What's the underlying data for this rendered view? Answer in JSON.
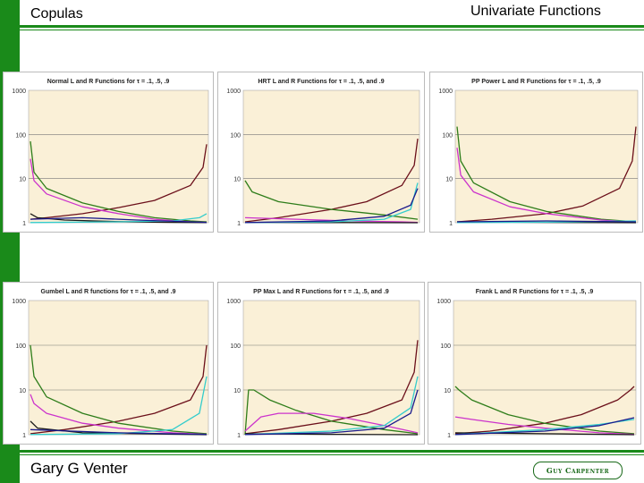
{
  "header": {
    "left": "Copulas",
    "right": "Univariate Functions"
  },
  "footer": {
    "author": "Gary G Venter",
    "logo_text": "Guy Carpenter"
  },
  "colors": {
    "brand_green": "#1a8a1a",
    "plot_bg": "#faf0d7"
  },
  "chart_data": [
    {
      "type": "line",
      "title": "Normal L and R Functions for τ = .1, .5, .9",
      "log_y": true,
      "ylim": [
        1,
        1000
      ],
      "y_ticks": [
        "1000",
        "100",
        "10",
        "1"
      ],
      "x_range": [
        0,
        1
      ],
      "series": [
        {
          "color": "#6b0f1a",
          "x": [
            0.01,
            0.1,
            0.3,
            0.5,
            0.7,
            0.9,
            0.97,
            0.99
          ],
          "y": [
            1.2,
            1.3,
            1.6,
            2.2,
            3.2,
            7,
            18,
            60
          ]
        },
        {
          "color": "#2e7d1a",
          "x": [
            0.01,
            0.03,
            0.1,
            0.3,
            0.5,
            0.7,
            0.9,
            0.99
          ],
          "y": [
            70,
            14,
            6,
            2.8,
            1.8,
            1.3,
            1.1,
            1.05
          ]
        },
        {
          "color": "#cc33cc",
          "x": [
            0.01,
            0.03,
            0.1,
            0.3,
            0.5,
            0.7,
            0.9,
            0.99
          ],
          "y": [
            28,
            9,
            4.5,
            2.3,
            1.6,
            1.2,
            1.05,
            1.02
          ]
        },
        {
          "color": "#1a1a1a",
          "x": [
            0.01,
            0.05,
            0.2,
            0.5,
            0.8,
            0.99
          ],
          "y": [
            1.6,
            1.3,
            1.15,
            1.06,
            1.02,
            1.01
          ]
        },
        {
          "color": "#33cccc",
          "x": [
            0.01,
            0.5,
            0.8,
            0.95,
            0.99
          ],
          "y": [
            1.01,
            1.05,
            1.1,
            1.3,
            1.6
          ]
        },
        {
          "color": "#1a1a8c",
          "x": [
            0.01,
            0.3,
            0.6,
            0.9,
            0.99
          ],
          "y": [
            1.2,
            1.3,
            1.15,
            1.05,
            1.02
          ]
        }
      ]
    },
    {
      "type": "line",
      "title": "HRT L and R Functions for τ = .1, .5, and .9",
      "log_y": true,
      "ylim": [
        1,
        1000
      ],
      "y_ticks": [
        "1000",
        "100",
        "10",
        "1"
      ],
      "x_range": [
        0,
        1
      ],
      "series": [
        {
          "color": "#6b0f1a",
          "x": [
            0.01,
            0.2,
            0.5,
            0.7,
            0.9,
            0.97,
            0.99
          ],
          "y": [
            1.05,
            1.3,
            2,
            3,
            7,
            20,
            80
          ]
        },
        {
          "color": "#2e7d1a",
          "x": [
            0.01,
            0.05,
            0.2,
            0.5,
            0.8,
            0.99
          ],
          "y": [
            9,
            5,
            3,
            2,
            1.5,
            1.2
          ]
        },
        {
          "color": "#cc33cc",
          "x": [
            0.01,
            0.3,
            0.6,
            0.9,
            0.99
          ],
          "y": [
            1.3,
            1.2,
            1.1,
            1.05,
            1.02
          ]
        },
        {
          "color": "#1a1a1a",
          "x": [
            0.01,
            0.5,
            0.99
          ],
          "y": [
            1.02,
            1.01,
            1.0
          ]
        },
        {
          "color": "#33cccc",
          "x": [
            0.01,
            0.5,
            0.8,
            0.95,
            0.99
          ],
          "y": [
            1.01,
            1.05,
            1.2,
            2,
            8
          ]
        },
        {
          "color": "#1a1a8c",
          "x": [
            0.01,
            0.5,
            0.8,
            0.95,
            0.99
          ],
          "y": [
            1.01,
            1.1,
            1.4,
            2.5,
            6
          ]
        }
      ]
    },
    {
      "type": "line",
      "title": "PP Power L and R Functions for τ = .1, .5, .9",
      "log_y": true,
      "ylim": [
        1,
        1000
      ],
      "y_ticks": [
        "1000",
        "100",
        "10",
        "1"
      ],
      "x_range": [
        0,
        1
      ],
      "series": [
        {
          "color": "#6b0f1a",
          "x": [
            0.01,
            0.2,
            0.5,
            0.7,
            0.9,
            0.97,
            0.99
          ],
          "y": [
            1.05,
            1.2,
            1.6,
            2.4,
            6,
            25,
            150
          ]
        },
        {
          "color": "#2e7d1a",
          "x": [
            0.01,
            0.03,
            0.1,
            0.3,
            0.5,
            0.8,
            0.99
          ],
          "y": [
            150,
            25,
            8,
            3,
            1.8,
            1.2,
            1.05
          ]
        },
        {
          "color": "#cc33cc",
          "x": [
            0.01,
            0.03,
            0.1,
            0.3,
            0.5,
            0.8,
            0.99
          ],
          "y": [
            50,
            12,
            5,
            2.3,
            1.6,
            1.15,
            1.03
          ]
        },
        {
          "color": "#1a1a1a",
          "x": [
            0.01,
            0.5,
            0.99
          ],
          "y": [
            1.05,
            1.02,
            1.0
          ]
        },
        {
          "color": "#33cccc",
          "x": [
            0.01,
            0.5,
            0.99
          ],
          "y": [
            1.01,
            1.03,
            1.1
          ]
        },
        {
          "color": "#1a1a8c",
          "x": [
            0.01,
            0.5,
            0.99
          ],
          "y": [
            1.05,
            1.1,
            1.05
          ]
        }
      ]
    },
    {
      "type": "line",
      "title": "Gumbel L and R functions for τ = .1, .5, and .9",
      "log_y": true,
      "ylim": [
        1,
        1000
      ],
      "y_ticks": [
        "1000",
        "100",
        "10",
        "1"
      ],
      "x_range": [
        0,
        1
      ],
      "series": [
        {
          "color": "#6b0f1a",
          "x": [
            0.01,
            0.2,
            0.5,
            0.7,
            0.9,
            0.97,
            0.99
          ],
          "y": [
            1.05,
            1.3,
            2,
            3,
            6,
            20,
            100
          ]
        },
        {
          "color": "#2e7d1a",
          "x": [
            0.01,
            0.03,
            0.1,
            0.3,
            0.5,
            0.8,
            0.99
          ],
          "y": [
            100,
            20,
            7,
            3,
            1.8,
            1.2,
            1.05
          ]
        },
        {
          "color": "#cc33cc",
          "x": [
            0.01,
            0.03,
            0.1,
            0.3,
            0.5,
            0.8,
            0.99
          ],
          "y": [
            8,
            5,
            3,
            1.8,
            1.4,
            1.1,
            1.02
          ]
        },
        {
          "color": "#1a1a1a",
          "x": [
            0.01,
            0.05,
            0.3,
            0.99
          ],
          "y": [
            2,
            1.4,
            1.1,
            1.0
          ]
        },
        {
          "color": "#33cccc",
          "x": [
            0.01,
            0.5,
            0.8,
            0.95,
            0.99
          ],
          "y": [
            1.01,
            1.05,
            1.3,
            3,
            20
          ]
        },
        {
          "color": "#1a1a8c",
          "x": [
            0.01,
            0.5,
            0.99
          ],
          "y": [
            1.3,
            1.1,
            1.02
          ]
        }
      ]
    },
    {
      "type": "line",
      "title": "PP Max L and R Functions for τ = .1, .5, and .9",
      "log_y": true,
      "ylim": [
        1,
        1000
      ],
      "y_ticks": [
        "1000",
        "100",
        "10",
        "1"
      ],
      "x_range": [
        0,
        1
      ],
      "series": [
        {
          "color": "#6b0f1a",
          "x": [
            0.01,
            0.2,
            0.5,
            0.7,
            0.9,
            0.97,
            0.99
          ],
          "y": [
            1.05,
            1.3,
            2,
            3,
            6,
            25,
            130
          ]
        },
        {
          "color": "#2e7d1a",
          "x": [
            0.01,
            0.03,
            0.06,
            0.15,
            0.3,
            0.5,
            0.8,
            0.99
          ],
          "y": [
            1,
            10,
            10,
            6,
            3.5,
            2,
            1.3,
            1.05
          ]
        },
        {
          "color": "#cc33cc",
          "x": [
            0.01,
            0.1,
            0.2,
            0.4,
            0.6,
            0.8,
            0.99
          ],
          "y": [
            1.2,
            2.5,
            3,
            3,
            2.3,
            1.6,
            1.1
          ]
        },
        {
          "color": "#1a1a1a",
          "x": [
            0.01,
            0.5,
            0.99
          ],
          "y": [
            1.05,
            1.02,
            1.0
          ]
        },
        {
          "color": "#33cccc",
          "x": [
            0.01,
            0.5,
            0.8,
            0.95,
            0.99
          ],
          "y": [
            1.01,
            1.2,
            1.6,
            4,
            20
          ]
        },
        {
          "color": "#1a1a8c",
          "x": [
            0.01,
            0.5,
            0.8,
            0.95,
            0.99
          ],
          "y": [
            1.01,
            1.1,
            1.4,
            3,
            10
          ]
        }
      ]
    },
    {
      "type": "line",
      "title": "Frank L and R Functions for τ = .1, .5, .9",
      "log_y": true,
      "ylim": [
        1,
        1000
      ],
      "y_ticks": [
        "1000",
        "100",
        "10",
        "1"
      ],
      "x_range": [
        0,
        1
      ],
      "series": [
        {
          "color": "#6b0f1a",
          "x": [
            0.01,
            0.2,
            0.5,
            0.7,
            0.9,
            0.97,
            0.99
          ],
          "y": [
            1.05,
            1.2,
            1.8,
            2.8,
            6,
            10,
            12
          ]
        },
        {
          "color": "#2e7d1a",
          "x": [
            0.01,
            0.03,
            0.1,
            0.3,
            0.5,
            0.8,
            0.99
          ],
          "y": [
            12,
            10,
            6,
            2.8,
            1.8,
            1.2,
            1.05
          ]
        },
        {
          "color": "#cc33cc",
          "x": [
            0.01,
            0.1,
            0.3,
            0.5,
            0.8,
            0.99
          ],
          "y": [
            2.5,
            2.2,
            1.7,
            1.4,
            1.1,
            1.02
          ]
        },
        {
          "color": "#1a1a1a",
          "x": [
            0.01,
            0.5,
            0.99
          ],
          "y": [
            1.1,
            1.05,
            1.0
          ]
        },
        {
          "color": "#33cccc",
          "x": [
            0.01,
            0.5,
            0.8,
            0.99
          ],
          "y": [
            1.01,
            1.3,
            1.7,
            2.2
          ]
        },
        {
          "color": "#1a1a8c",
          "x": [
            0.01,
            0.5,
            0.8,
            0.99
          ],
          "y": [
            1.01,
            1.2,
            1.6,
            2.4
          ]
        }
      ]
    }
  ]
}
